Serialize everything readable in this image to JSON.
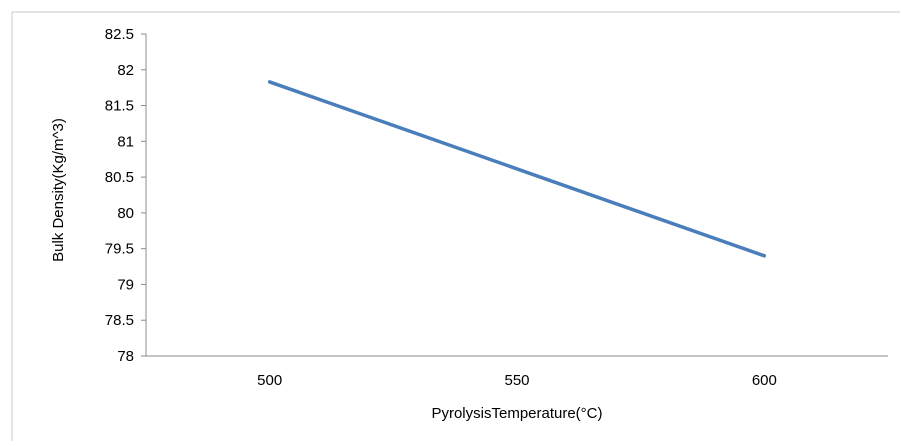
{
  "chart_data": {
    "type": "line",
    "title": "",
    "xlabel": "PyrolysisTemperature(°C)",
    "ylabel": "Bulk Density(Kg/m^3)",
    "x": [
      500,
      600
    ],
    "series": [
      {
        "values": [
          81.83,
          79.4
        ],
        "color": "#4a7ebb"
      }
    ],
    "xticks": [
      "500",
      "550",
      "600"
    ],
    "yticks": [
      "78",
      "78.5",
      "79",
      "79.5",
      "80",
      "80.5",
      "81",
      "81.5",
      "82",
      "82.5"
    ],
    "xlim": [
      475,
      625
    ],
    "ylim": [
      78,
      82.5
    ],
    "grid": false,
    "legend": "none"
  }
}
